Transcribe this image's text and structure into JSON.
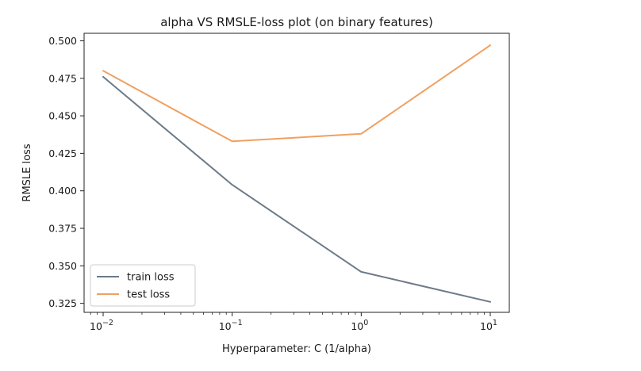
{
  "chart_data": {
    "type": "line",
    "title": "alpha VS RMSLE-loss plot (on binary features)",
    "xlabel": "Hyperparameter: C (1/alpha)",
    "ylabel": "RMSLE loss",
    "x_scale": "log",
    "x": [
      0.01,
      0.1,
      1,
      10
    ],
    "x_tick_labels": [
      {
        "base": "10",
        "exp": "−2"
      },
      {
        "base": "10",
        "exp": "−1"
      },
      {
        "base": "10",
        "exp": "0"
      },
      {
        "base": "10",
        "exp": "1"
      }
    ],
    "y_ticks": [
      "0.325",
      "0.350",
      "0.375",
      "0.400",
      "0.425",
      "0.450",
      "0.475",
      "0.500"
    ],
    "ylim": [
      0.319,
      0.505
    ],
    "grid": false,
    "legend_position": "lower-left",
    "series": [
      {
        "name": "train loss",
        "color": "#6c7a89",
        "values": [
          0.476,
          0.404,
          0.346,
          0.326
        ]
      },
      {
        "name": "test loss",
        "color": "#f0a060",
        "values": [
          0.48,
          0.433,
          0.438,
          0.497
        ]
      }
    ]
  }
}
